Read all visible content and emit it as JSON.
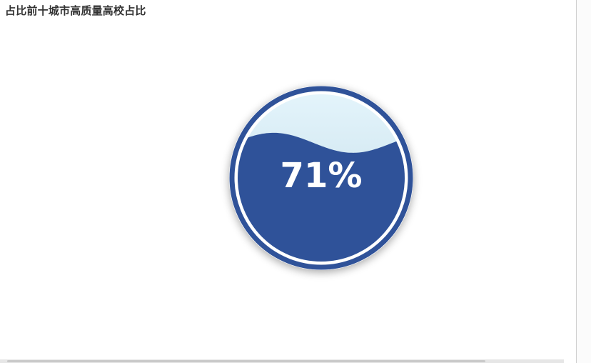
{
  "chart_data": {
    "type": "liquidfill",
    "title": "占比前十城市高质量高校占比",
    "value": 0.71,
    "value_label": "71%",
    "colors": {
      "fill": "#2f5299",
      "border": "#2f5299",
      "background_top": "#e3f4fb",
      "background_bottom": "#c3dce8",
      "label": "#ffffff",
      "title": "#333333"
    }
  }
}
